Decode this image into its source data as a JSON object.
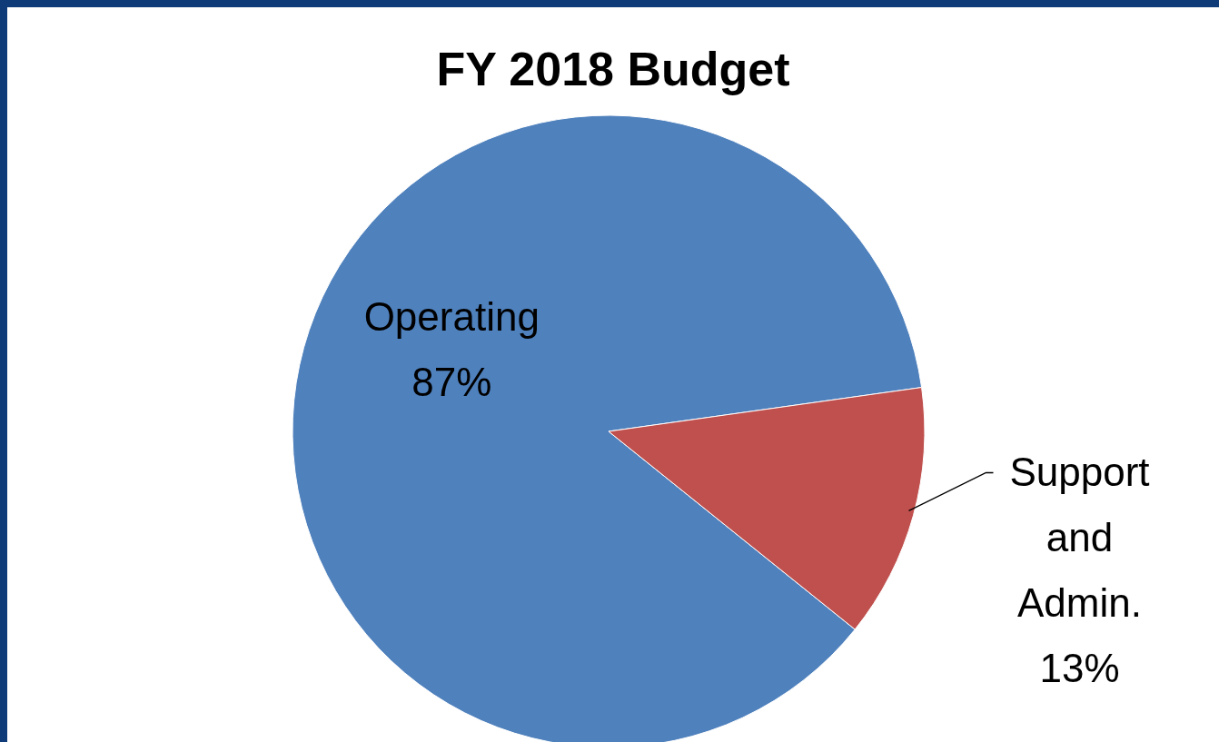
{
  "chart_data": {
    "type": "pie",
    "title": "FY 2018 Budget",
    "categories": [
      "Operating",
      "Support and Admin."
    ],
    "values": [
      87,
      13
    ],
    "value_labels": [
      "87%",
      "13%"
    ],
    "colors": [
      "#4f81bd",
      "#c0504d"
    ]
  }
}
